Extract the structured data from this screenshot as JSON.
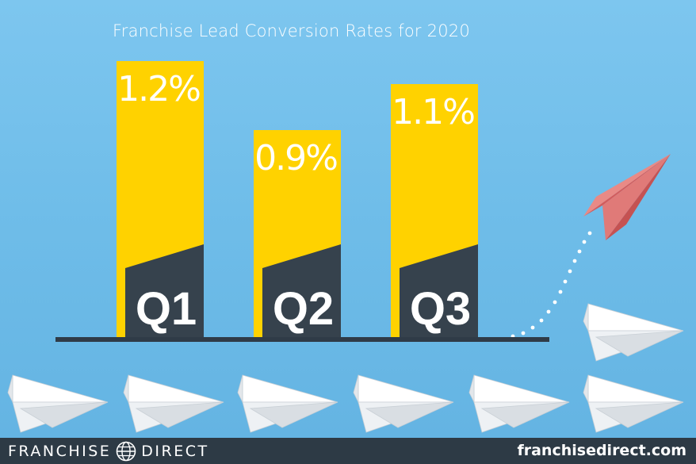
{
  "chart_data": {
    "type": "bar",
    "title": "Franchise Lead Conversion Rates for 2020",
    "categories": [
      "Q1",
      "Q2",
      "Q3"
    ],
    "values": [
      1.2,
      0.9,
      1.1
    ],
    "value_labels": [
      "1.2%",
      "0.9%",
      "1.1%"
    ],
    "unit": "%",
    "ylim": [
      0,
      1.4
    ],
    "grid": false,
    "legend": "none",
    "colors": {
      "bar": "#ffd200",
      "bar_base": "#36424d",
      "baseline": "#2f3b47",
      "label": "#ffffff",
      "background": "#6fbde9"
    }
  },
  "footer": {
    "brand_left_1": "FRANCHISE",
    "brand_left_2": "DIRECT",
    "brand_right": "franchisedirect.com",
    "logo_icon": "globe-icon"
  },
  "decorations": {
    "paper_plane_color": "#f4f6f8",
    "red_plane_color": "#d86a6a",
    "dots_color": "#ffffff",
    "icons": [
      "paper-plane-icon",
      "red-paper-plane-icon"
    ]
  }
}
